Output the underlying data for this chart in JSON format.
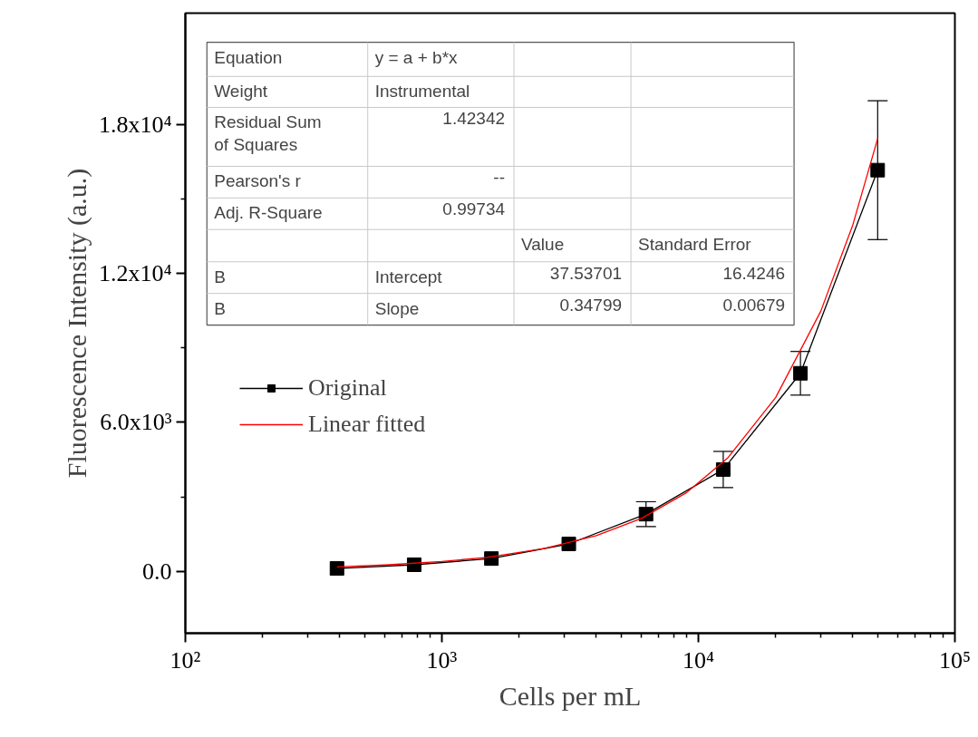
{
  "chart_data": {
    "type": "line",
    "xlabel": "Cells per mL",
    "ylabel": "Fluorescence Intensity (a.u.)",
    "log": "x",
    "xlim": [
      100,
      100000
    ],
    "ylim": [
      -2500,
      22500
    ],
    "xticks": [
      {
        "value": 100,
        "label": "10²"
      },
      {
        "value": 1000,
        "label": "10³"
      },
      {
        "value": 10000,
        "label": "10⁴"
      },
      {
        "value": 100000,
        "label": "10⁵"
      }
    ],
    "yticks": [
      {
        "value": 0,
        "label": "0.0"
      },
      {
        "value": 6000,
        "label": "6.0x10³"
      },
      {
        "value": 12000,
        "label": "1.2x10⁴"
      },
      {
        "value": 18000,
        "label": "1.8x10⁴"
      }
    ],
    "legend": "left",
    "marker": "square",
    "series": [
      {
        "name": "Original",
        "color": "#000000",
        "x": [
          390,
          780,
          1560,
          3125,
          6250,
          12500,
          25000,
          50000
        ],
        "values": [
          110,
          260,
          510,
          1100,
          2300,
          4100,
          7980,
          16170
        ],
        "errors": [
          null,
          null,
          null,
          null,
          500,
          730,
          880,
          2800
        ]
      },
      {
        "name": "Linear fitted",
        "marker": "none",
        "color": "#ff0000",
        "x": [
          390,
          600,
          1000,
          1500,
          2500,
          4000,
          6000,
          9000,
          13000,
          20000,
          30000,
          40000,
          50000
        ],
        "values": [
          170,
          250,
          390,
          560,
          910,
          1430,
          2130,
          3170,
          4560,
          7000,
          10480,
          13960,
          17440
        ]
      }
    ],
    "annotations": [
      "Equation",
      "y = a + b*x",
      "Weight",
      "Instrumental",
      "Residual Sum\nof Squares",
      "1.42342",
      "Pearson's r",
      "--",
      "Adj. R-Square",
      "0.99734",
      "Value",
      "Standard Error",
      "B",
      "Intercept",
      "37.53701",
      "16.4246",
      "B",
      "Slope",
      "0.34799",
      "0.00679"
    ]
  }
}
